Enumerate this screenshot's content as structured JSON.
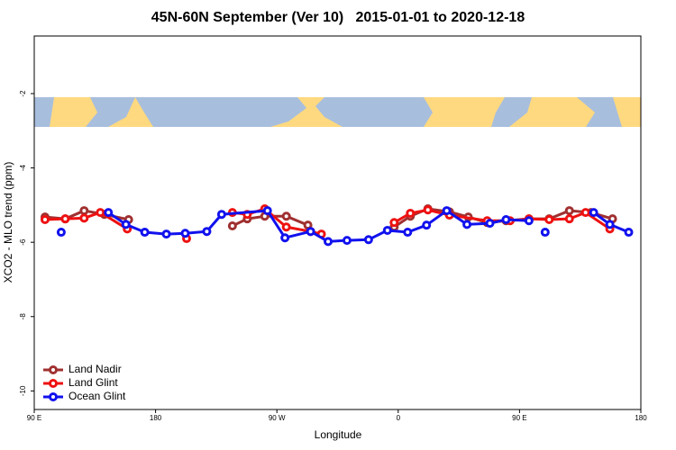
{
  "chart_data": {
    "type": "line",
    "title": "45N-60N September (Ver 10)   2015-01-01 to 2020-12-18",
    "x_label": "Longitude",
    "y_label": "XCO2 - MLO trend (ppm)",
    "xlim": [
      90,
      540
    ],
    "ylim": [
      -10.5,
      -0.45
    ],
    "xticks": [
      {
        "value": 90,
        "label": "90 E"
      },
      {
        "value": 180,
        "label": "180"
      },
      {
        "value": 270,
        "label": "90 W"
      },
      {
        "value": 360,
        "label": "0"
      },
      {
        "value": 450,
        "label": "90 E"
      },
      {
        "value": 540,
        "label": "180"
      }
    ],
    "yticks": [
      -10,
      -8,
      -6,
      -4,
      -2
    ],
    "legend": "bottom-left",
    "series": [
      {
        "name": "Land Nadir",
        "color": "#a03030",
        "x": [
          98,
          113,
          127,
          142,
          160,
          200,
          237,
          248,
          261,
          277,
          293,
          325,
          357,
          369,
          382,
          398,
          412,
          426,
          440,
          457,
          472,
          487,
          503,
          519
        ],
        "values": [
          -5.32,
          -5.37,
          -5.15,
          -5.25,
          -5.39,
          null,
          -5.56,
          -5.37,
          -5.3,
          -5.3,
          -5.54,
          null,
          -5.59,
          -5.3,
          -5.1,
          -5.18,
          -5.32,
          -5.47,
          -5.42,
          -5.37,
          -5.37,
          -5.15,
          -5.2,
          -5.37
        ]
      },
      {
        "name": "Land Glint",
        "color": "#ee1111",
        "x": [
          98,
          113,
          127,
          139,
          159,
          180,
          203,
          220,
          237,
          248,
          261,
          277,
          295,
          303,
          330,
          357,
          369,
          382,
          398,
          426,
          443,
          457,
          472,
          487,
          499,
          517
        ],
        "values": [
          -5.39,
          -5.37,
          -5.35,
          -5.2,
          -5.64,
          null,
          -5.9,
          null,
          -5.2,
          -5.25,
          -5.1,
          -5.59,
          -5.71,
          -5.78,
          null,
          -5.47,
          -5.22,
          -5.13,
          -5.27,
          -5.42,
          -5.42,
          -5.37,
          -5.39,
          -5.37,
          -5.2,
          -5.64
        ]
      },
      {
        "name": "Ocean Glint",
        "color": "#1111ee",
        "x": [
          110,
          127,
          145,
          158,
          172,
          188,
          202,
          218,
          229,
          263,
          276,
          295,
          308,
          322,
          338,
          352,
          367,
          381,
          396,
          411,
          428,
          440,
          457,
          463,
          469,
          487,
          505,
          517,
          531
        ],
        "values": [
          -5.73,
          null,
          -5.2,
          -5.52,
          -5.73,
          -5.78,
          -5.76,
          -5.71,
          -5.25,
          -5.15,
          -5.88,
          -5.71,
          -5.98,
          -5.95,
          -5.93,
          -5.68,
          -5.73,
          -5.54,
          -5.15,
          -5.52,
          -5.49,
          -5.39,
          -5.42,
          null,
          -5.73,
          null,
          -5.2,
          -5.52,
          -5.73
        ]
      }
    ]
  }
}
